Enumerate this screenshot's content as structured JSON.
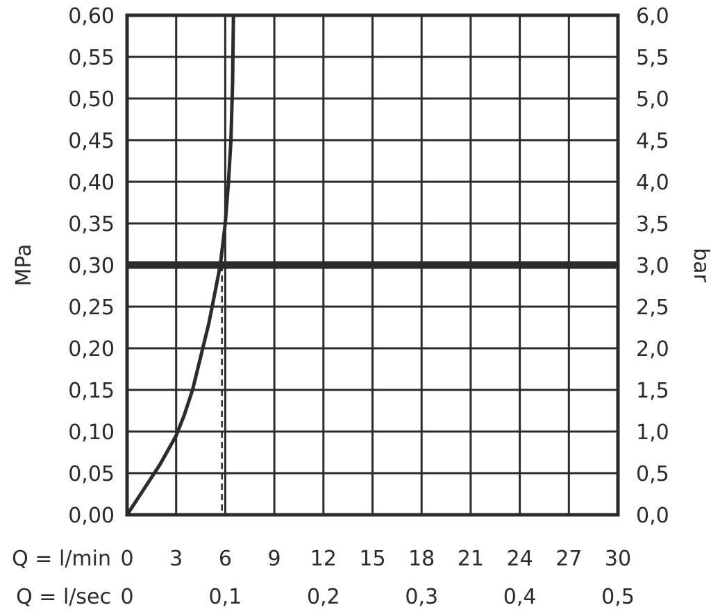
{
  "chart_data": {
    "type": "line",
    "xlabel": "Q = l/min",
    "x2label": "Q = l/sec",
    "ylabel": "MPa",
    "y2label": "bar",
    "xlim": [
      0,
      30
    ],
    "ylim": [
      0,
      0.6
    ],
    "y2lim": [
      0,
      6
    ],
    "grid": true,
    "x_ticks": [
      "0",
      "3",
      "6",
      "9",
      "12",
      "15",
      "18",
      "21",
      "24",
      "27",
      "30"
    ],
    "x2_ticks": [
      {
        "pos": 0,
        "label": "0"
      },
      {
        "pos": 6,
        "label": "0,1"
      },
      {
        "pos": 12,
        "label": "0,2"
      },
      {
        "pos": 18,
        "label": "0,3"
      },
      {
        "pos": 24,
        "label": "0,4"
      },
      {
        "pos": 30,
        "label": "0,5"
      }
    ],
    "y_ticks": [
      "0,00",
      "0,05",
      "0,10",
      "0,15",
      "0,20",
      "0,25",
      "0,30",
      "0,35",
      "0,40",
      "0,45",
      "0,50",
      "0,55",
      "0,60"
    ],
    "y2_ticks": [
      "0,0",
      "0,5",
      "1,0",
      "1,5",
      "2,0",
      "2,5",
      "3,0",
      "3,5",
      "4,0",
      "4,5",
      "5,0",
      "5,5",
      "6,0"
    ],
    "series": [
      {
        "x": [
          0,
          1,
          2,
          3,
          3.5,
          4,
          4.5,
          5,
          5.4,
          5.7,
          6.0,
          6.2,
          6.35,
          6.45,
          6.5
        ],
        "y": [
          0,
          0.03,
          0.06,
          0.095,
          0.12,
          0.15,
          0.19,
          0.23,
          0.27,
          0.3,
          0.35,
          0.4,
          0.45,
          0.52,
          0.6
        ]
      }
    ],
    "reference_line": {
      "y": 0.3
    },
    "reference_drop": {
      "x": 5.8,
      "y_from": 0.3,
      "y_to": 0
    }
  }
}
